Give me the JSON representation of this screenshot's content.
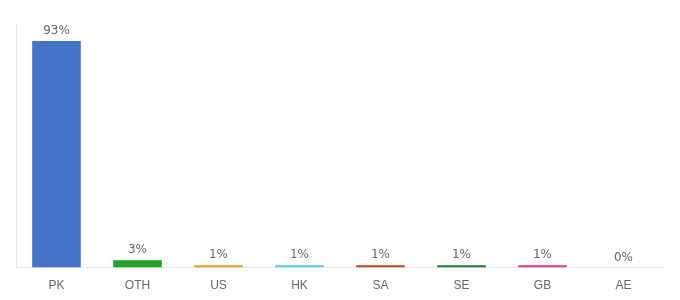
{
  "chart_data": {
    "type": "bar",
    "categories": [
      "PK",
      "OTH",
      "US",
      "HK",
      "SA",
      "SE",
      "GB",
      "AE"
    ],
    "values": [
      93,
      3,
      1,
      1,
      1,
      1,
      1,
      0
    ],
    "value_labels": [
      "93%",
      "3%",
      "1%",
      "1%",
      "1%",
      "1%",
      "1%",
      "0%"
    ],
    "colors": [
      "#4472C4",
      "#21A027",
      "#E8A020",
      "#58C8E8",
      "#C04820",
      "#1A7830",
      "#E03880",
      "#888888"
    ],
    "ylim": [
      0,
      100
    ],
    "grid": false,
    "data_labels": true,
    "tick_labels": "x"
  }
}
